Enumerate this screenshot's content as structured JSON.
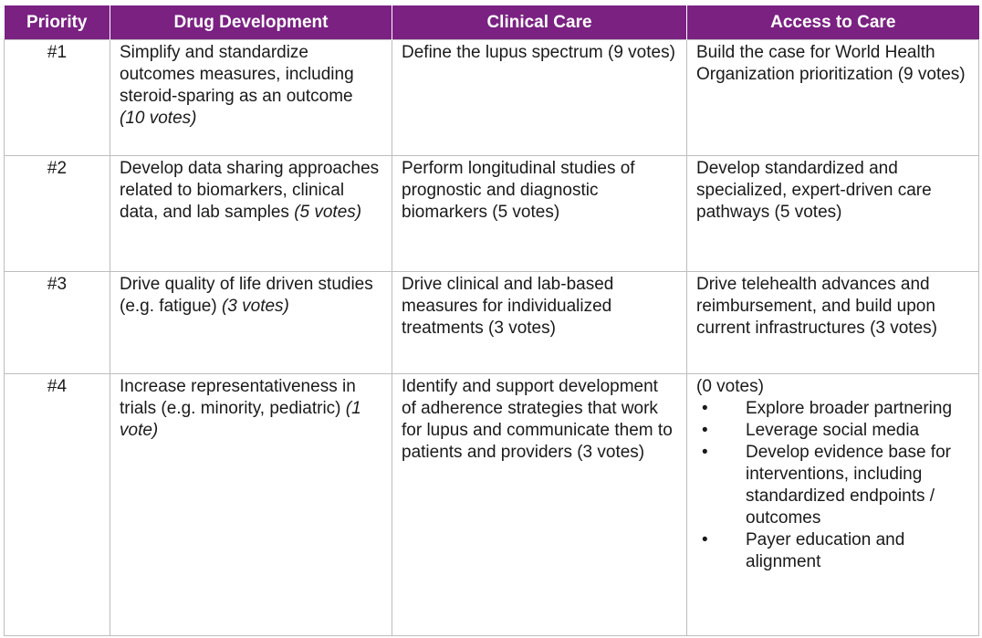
{
  "headers": [
    "Priority",
    "Drug Development",
    "Clinical Care",
    "Access to Care"
  ],
  "rows": [
    {
      "priority": "#1",
      "drug": {
        "text": "Simplify and standardize outcomes measures, including steroid-sparing as an outcome ",
        "votes": "(10 votes)"
      },
      "clinical": "Define the lupus spectrum (9 votes)",
      "access": "Build the case for World Health Organization prioritization (9 votes)"
    },
    {
      "priority": "#2",
      "drug": {
        "text": "Develop data sharing approaches related to biomarkers, clinical data, and lab samples ",
        "votes": "(5 votes)"
      },
      "clinical": "Perform longitudinal studies of prognostic and diagnostic biomarkers (5 votes)",
      "access": "Develop standardized and specialized, expert-driven care pathways (5 votes)"
    },
    {
      "priority": "#3",
      "drug": {
        "text": "Drive quality of life driven studies (e.g. fatigue) ",
        "votes": "(3 votes)"
      },
      "clinical": "Drive clinical and lab-based measures for individualized treatments (3 votes)",
      "access": "Drive telehealth advances and reimbursement, and build upon current infrastructures (3 votes)"
    },
    {
      "priority": "#4",
      "drug": {
        "text": "Increase representativeness in trials (e.g. minority, pediatric) ",
        "votes": "(1 vote)"
      },
      "clinical": "Identify and support development of adherence strategies that work for lupus and communicate them to patients and providers (3 votes)",
      "access_intro": "(0 votes)",
      "access_bullet_char": "•",
      "access_bullets": [
        "Explore broader partnering",
        "Leverage social media",
        "Develop evidence base for interventions, including standardized endpoints / outcomes",
        "Payer education and alignment"
      ]
    }
  ],
  "colors": {
    "header_bg": "#7a2182",
    "header_text": "#ffffff",
    "border": "#bdbdbd"
  }
}
